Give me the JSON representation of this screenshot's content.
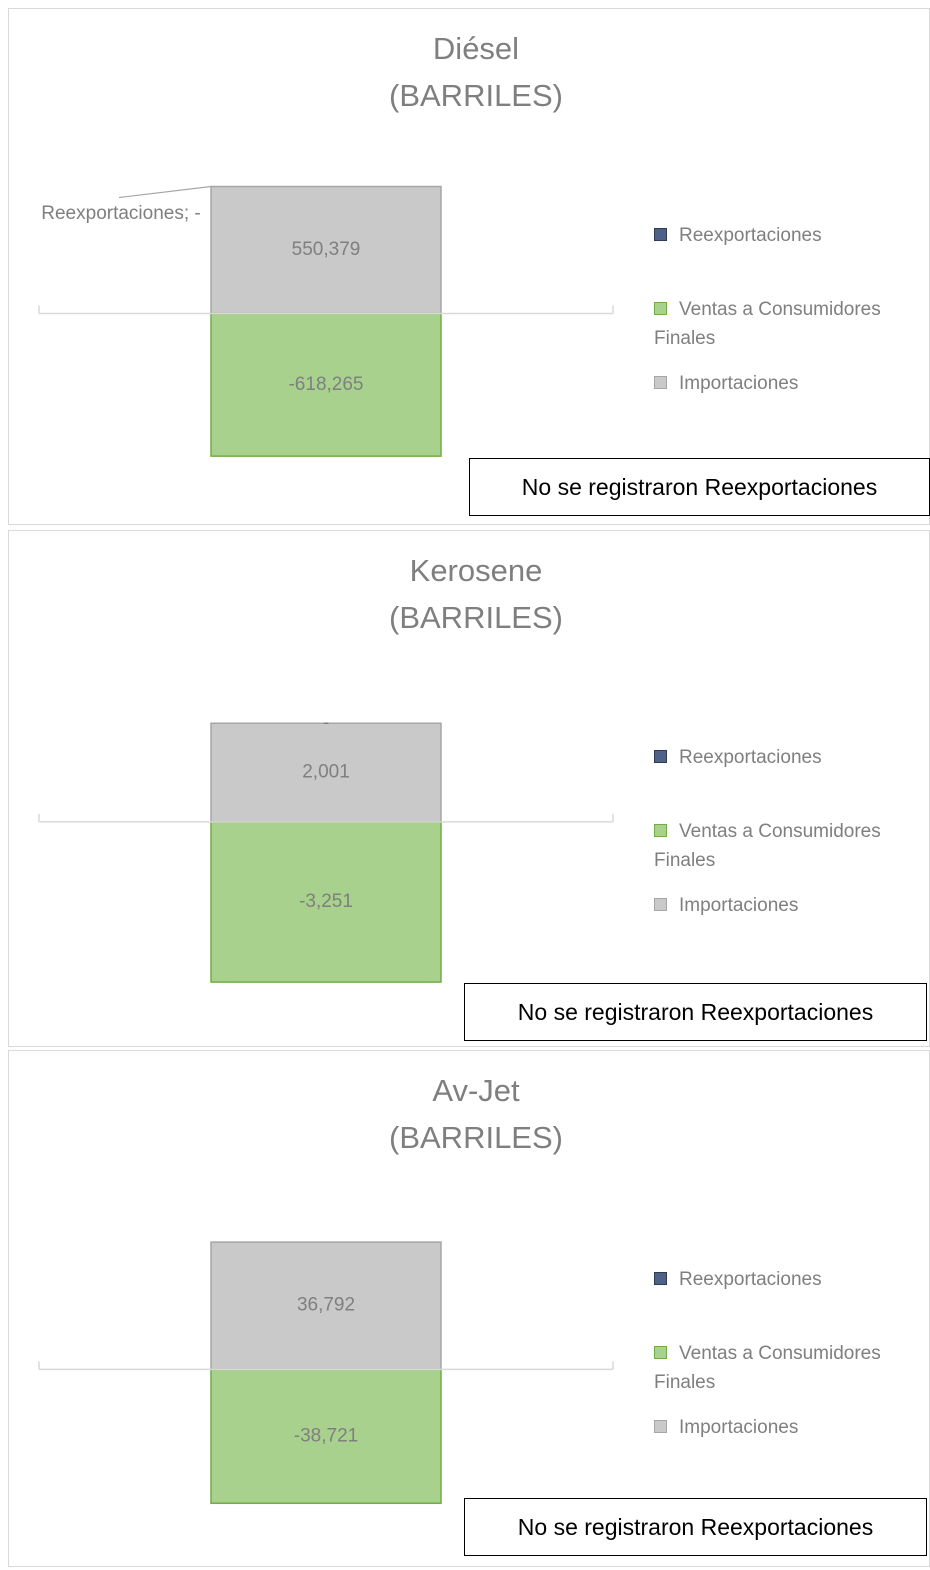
{
  "chart_data": [
    {
      "type": "bar",
      "stacked": true,
      "title": "Diésel",
      "subtitle": "(BARRILES)",
      "ylim": [
        -700000,
        700000
      ],
      "legend": "right",
      "series": [
        {
          "name": "Reexportaciones",
          "color": "#4f6186",
          "values": [
            0
          ],
          "value_labels": [
            "Reexportaciones; -"
          ]
        },
        {
          "name": "Ventas a Consumidores Finales",
          "color": "#a9d18e",
          "values": [
            -618265
          ],
          "value_labels": [
            "-618,265"
          ]
        },
        {
          "name": "Importaciones",
          "color": "#c9c9c9",
          "values": [
            550379
          ],
          "value_labels": [
            "550,379"
          ]
        }
      ],
      "annotation": "No se registraron Reexportaciones"
    },
    {
      "type": "bar",
      "stacked": true,
      "title": "Kerosene",
      "subtitle": "(BARRILES)",
      "ylim": [
        -4000,
        3000
      ],
      "legend": "right",
      "series": [
        {
          "name": "Reexportaciones",
          "color": "#4f6186",
          "values": [
            0
          ],
          "value_labels": [
            "-"
          ]
        },
        {
          "name": "Ventas a Consumidores Finales",
          "color": "#a9d18e",
          "values": [
            -3251
          ],
          "value_labels": [
            "-3,251"
          ]
        },
        {
          "name": "Importaciones",
          "color": "#c9c9c9",
          "values": [
            2001
          ],
          "value_labels": [
            "2,001"
          ]
        }
      ],
      "annotation": "No se registraron Reexportaciones"
    },
    {
      "type": "bar",
      "stacked": true,
      "title": "Av-Jet",
      "subtitle": "(BARRILES)",
      "ylim": [
        -45000,
        40000
      ],
      "legend": "right",
      "series": [
        {
          "name": "Reexportaciones",
          "color": "#4f6186",
          "values": [
            0
          ]
        },
        {
          "name": "Ventas a Consumidores Finales",
          "color": "#a9d18e",
          "values": [
            -38721
          ],
          "value_labels": [
            "-38,721"
          ]
        },
        {
          "name": "Importaciones",
          "color": "#c9c9c9",
          "values": [
            36792
          ],
          "value_labels": [
            "36,792"
          ]
        }
      ],
      "annotation": "No se registraron Reexportaciones"
    }
  ]
}
